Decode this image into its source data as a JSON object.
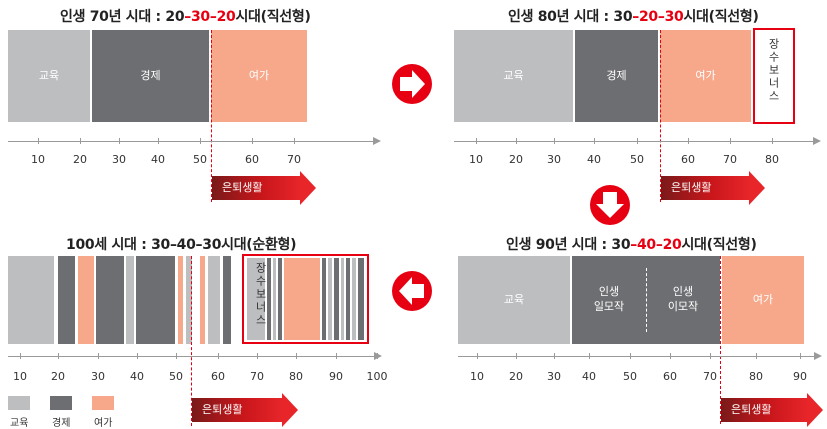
{
  "panels": {
    "p70": {
      "prefix": "인생 70년 시대 : ",
      "n1": "20",
      "dash1": "–",
      "n2": "30",
      "dash2": "–",
      "n3": "20",
      "suffix": "시대(직선형)",
      "seg_edu": "교육",
      "seg_econ": "경제",
      "seg_leisure": "여가",
      "ticks": [
        "10",
        "20",
        "30",
        "40",
        "50",
        "60",
        "70"
      ],
      "retire": "은퇴생활"
    },
    "p80": {
      "prefix": "인생 80년 시대 : ",
      "n1": "30",
      "dash1": "–",
      "n2": "20",
      "dash2": "–",
      "n3": "30",
      "suffix": "시대(직선형)",
      "seg_edu": "교육",
      "seg_econ": "경제",
      "seg_leisure": "여가",
      "bonus": "장수보너스",
      "ticks": [
        "10",
        "20",
        "30",
        "40",
        "50",
        "60",
        "70",
        "80"
      ],
      "retire": "은퇴생활"
    },
    "p100": {
      "title": "100세 시대 : 30–40–30시대(순환형)",
      "bonus": "장수보너스",
      "ticks": [
        "10",
        "20",
        "30",
        "40",
        "50",
        "60",
        "70",
        "80",
        "90",
        "100"
      ],
      "retire": "은퇴생활",
      "legend": [
        "교육",
        "경제",
        "여가"
      ]
    },
    "p90": {
      "prefix": "인생 90년 시대 : ",
      "n1": "30",
      "dash1": "–",
      "n2": "40",
      "dash2": "–",
      "n3": "20",
      "suffix": "시대(직선형)",
      "seg_edu": "교육",
      "seg_life1": "인생\n일모작",
      "seg_life2": "인생\n이모작",
      "seg_leisure": "여가",
      "ticks": [
        "10",
        "20",
        "30",
        "40",
        "50",
        "60",
        "70",
        "80",
        "90"
      ],
      "retire": "은퇴생활"
    }
  },
  "colors": {
    "light_gray": "#bdbec0",
    "dark_gray": "#6d6e71",
    "salmon": "#f7a88b",
    "red": "#e60012"
  },
  "icons": [
    "arrow-right-icon",
    "arrow-down-icon",
    "arrow-left-icon"
  ]
}
